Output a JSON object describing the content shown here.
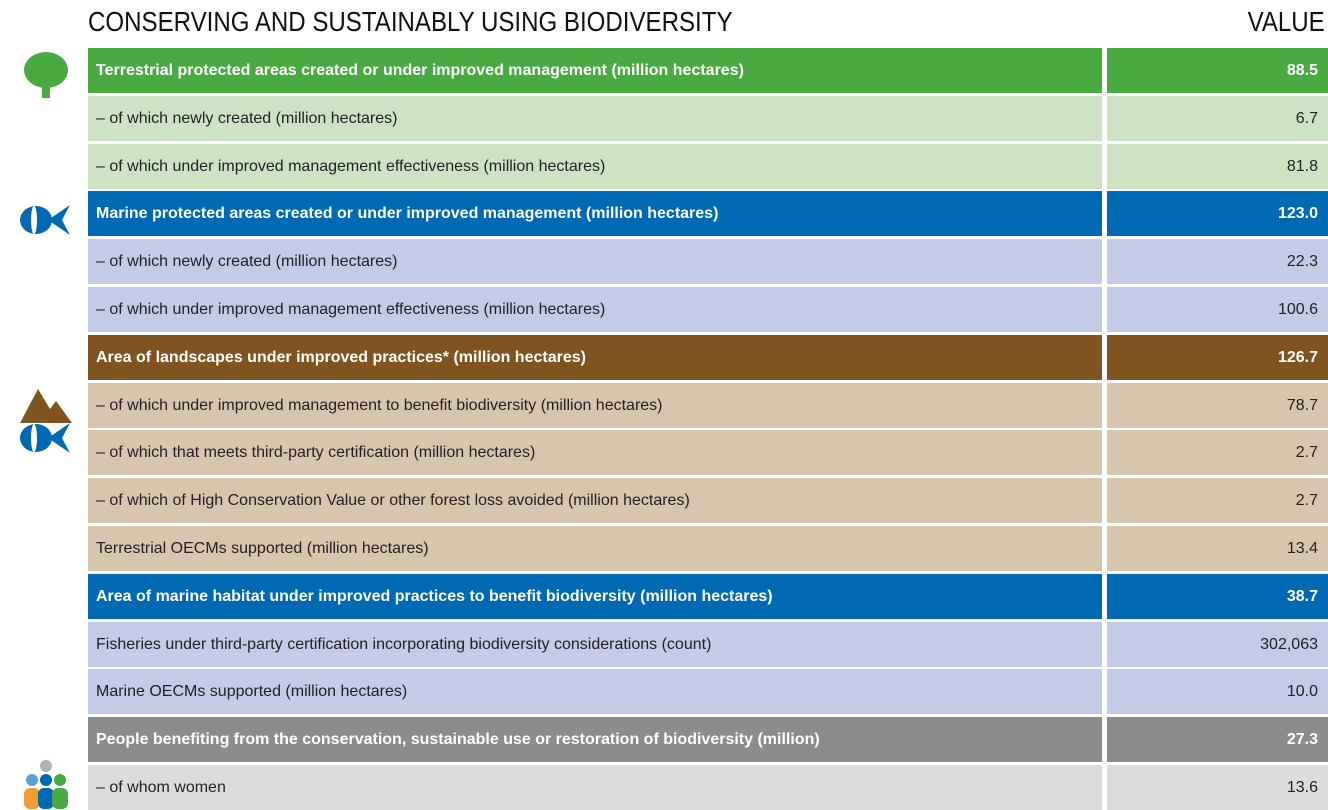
{
  "header": {
    "title": "CONSERVING AND SUSTAINABLY USING BIODIVERSITY",
    "value_heading": "VALUE"
  },
  "sections": [
    {
      "theme": "green",
      "header": {
        "label": "Terrestrial protected areas created or under improved management (million hectares)",
        "value": "88.5"
      },
      "rows": [
        {
          "label": "– of which newly created (million hectares)",
          "value": "6.7"
        },
        {
          "label": "– of which under improved management effectiveness (million hectares)",
          "value": "81.8"
        }
      ]
    },
    {
      "theme": "blue",
      "header": {
        "label": "Marine protected areas created or under improved management (million hectares)",
        "value": "123.0"
      },
      "rows": [
        {
          "label": "– of which newly created (million hectares)",
          "value": "22.3"
        },
        {
          "label": "– of which under improved management effectiveness (million hectares)",
          "value": "100.6"
        }
      ]
    },
    {
      "theme": "brown",
      "header": {
        "label": "Area of landscapes under improved practices* (million hectares)",
        "value": "126.7"
      },
      "rows": [
        {
          "label": "– of which under improved management to benefit biodiversity (million hectares)",
          "value": "78.7"
        },
        {
          "label": "– of which that meets third-party certification (million hectares)",
          "value": "2.7"
        },
        {
          "label": "– of which of High Conservation Value or other forest loss avoided (million hectares)",
          "value": "2.7"
        },
        {
          "label": "Terrestrial OECMs supported (million hectares)",
          "value": "13.4"
        }
      ]
    },
    {
      "theme": "blue",
      "header": {
        "label": "Area of marine habitat under improved practices to benefit biodiversity (million hectares)",
        "value": "38.7"
      },
      "rows": [
        {
          "label": "Fisheries under third-party certification incorporating biodiversity considerations (count)",
          "value": "302,063"
        },
        {
          "label": "Marine OECMs supported (million hectares)",
          "value": "10.0"
        }
      ]
    },
    {
      "theme": "gray",
      "header": {
        "label": "People benefiting from the conservation, sustainable use or restoration of biodiversity (million)",
        "value": "27.3"
      },
      "rows": [
        {
          "label": "– of whom women",
          "value": "13.6"
        }
      ]
    }
  ]
}
